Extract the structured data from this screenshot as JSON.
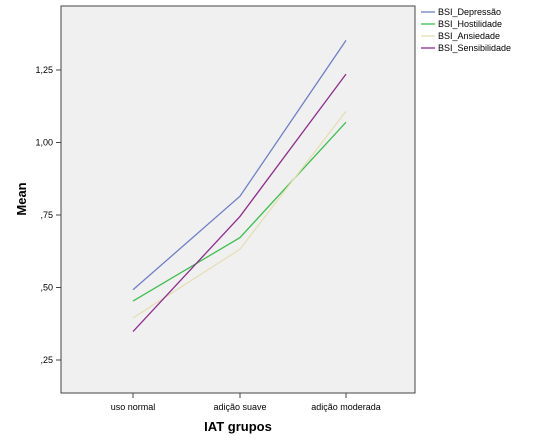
{
  "chart_data": {
    "type": "line",
    "title": "",
    "xlabel": "IAT grupos",
    "ylabel": "Mean",
    "categories": [
      "uso normal",
      "adição suave",
      "adição moderada"
    ],
    "ylim": [
      0.15,
      1.5
    ],
    "yticks": [
      0.25,
      0.5,
      0.75,
      1.0,
      1.25
    ],
    "ytick_labels": [
      ",25",
      ",50",
      ",75",
      "1,00",
      "1,25"
    ],
    "grid": false,
    "legend_position": "top-right outside",
    "series": [
      {
        "name": "BSI_Depressão",
        "color": "#6f7fc6",
        "values": [
          0.492,
          0.815,
          1.352
        ]
      },
      {
        "name": "BSI_Hostilidade",
        "color": "#3fbf4f",
        "values": [
          0.453,
          0.672,
          1.07
        ]
      },
      {
        "name": "BSI_Ansiedade",
        "color": "#e5dfb7",
        "values": [
          0.395,
          0.632,
          1.108
        ]
      },
      {
        "name": "BSI_Sensibilidade",
        "color": "#8e2d8e",
        "values": [
          0.348,
          0.745,
          1.236
        ]
      }
    ]
  }
}
